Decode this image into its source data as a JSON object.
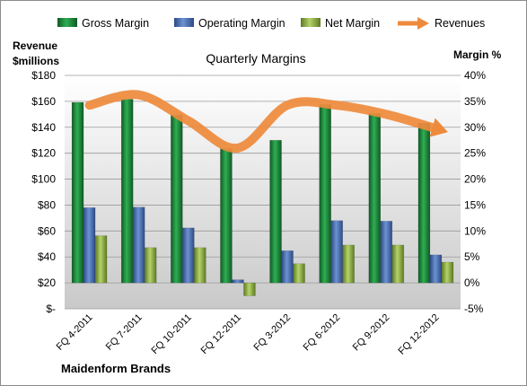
{
  "chart_data": {
    "type": "bar",
    "title": "Quarterly Margins",
    "company": "Maidenform Brands",
    "ylabel_left": [
      "Revenue",
      "$millions"
    ],
    "ylabel_right": "Margin %",
    "ylim_left": [
      0,
      180
    ],
    "ylim_right": [
      -5,
      40
    ],
    "yticks_left": [
      0,
      20,
      40,
      60,
      80,
      100,
      120,
      140,
      160,
      180
    ],
    "yticks_left_labels": [
      "$-",
      "$20",
      "$40",
      "$60",
      "$80",
      "$100",
      "$120",
      "$140",
      "$160",
      "$180"
    ],
    "yticks_right": [
      -5,
      0,
      5,
      10,
      15,
      20,
      25,
      30,
      35,
      40
    ],
    "yticks_right_labels": [
      "-5%",
      "0%",
      "5%",
      "10%",
      "15%",
      "20%",
      "25%",
      "30%",
      "35%",
      "40%"
    ],
    "categories": [
      "FQ 4-2011",
      "FQ 7-2011",
      "FQ 10-2011",
      "FQ 12-2011",
      "FQ 3-2012",
      "FQ 6-2012",
      "FQ 9-2012",
      "FQ 12-2012"
    ],
    "series": [
      {
        "name": "Gross Margin",
        "axis": "right",
        "kind": "bar",
        "color": "#1e8a3a",
        "values": [
          34.8,
          35.4,
          32.4,
          25.9,
          27.5,
          34.4,
          32.7,
          30.8
        ]
      },
      {
        "name": "Operating Margin",
        "axis": "right",
        "kind": "bar",
        "color": "#4a6fb0",
        "values": [
          14.5,
          14.6,
          10.6,
          0.6,
          6.2,
          12.0,
          11.9,
          5.4
        ]
      },
      {
        "name": "Net Margin",
        "axis": "right",
        "kind": "bar",
        "color": "#8fb040",
        "values": [
          9.1,
          6.8,
          6.8,
          -2.5,
          3.7,
          7.3,
          7.3,
          4.0
        ]
      },
      {
        "name": "Revenues",
        "axis": "left",
        "kind": "line",
        "color": "#ee8a3c",
        "values": [
          157,
          165,
          145,
          124,
          157,
          157,
          150,
          139
        ]
      }
    ],
    "legend_position": "top",
    "grid": true
  }
}
